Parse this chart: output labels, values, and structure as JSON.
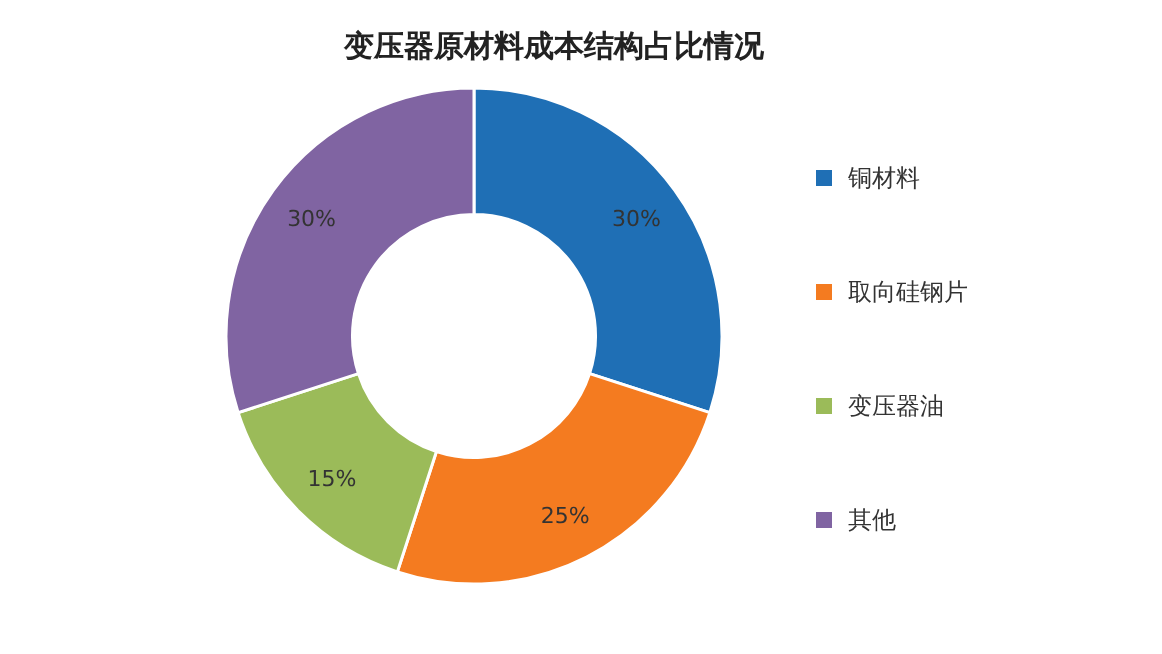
{
  "chart_data": {
    "type": "donut",
    "title": "变压器原材料成本结构占比情况",
    "categories": [
      "铜材料",
      "取向硅钢片",
      "变压器油",
      "其他"
    ],
    "values": [
      30,
      25,
      15,
      30
    ],
    "colors": [
      "#1f6fb5",
      "#f47b20",
      "#9bbb59",
      "#8064a2"
    ],
    "value_labels": [
      "30%",
      "25%",
      "15%",
      "30%"
    ],
    "legend": "right"
  }
}
